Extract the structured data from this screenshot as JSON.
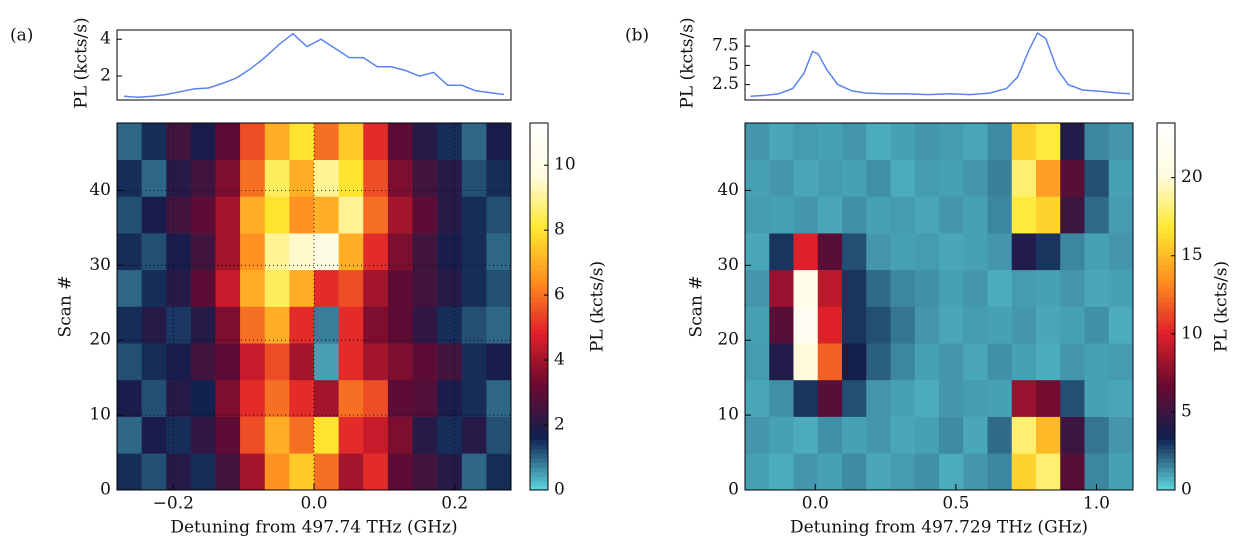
{
  "chart_data": [
    {
      "type": "line",
      "panel_label": "(a)",
      "ylabel": "PL (kcts/s)",
      "color": "#5b84f0",
      "x": [
        -0.27,
        -0.25,
        -0.23,
        -0.21,
        -0.19,
        -0.17,
        -0.15,
        -0.13,
        -0.11,
        -0.09,
        -0.07,
        -0.05,
        -0.03,
        -0.01,
        0.01,
        0.03,
        0.05,
        0.07,
        0.09,
        0.11,
        0.13,
        0.15,
        0.17,
        0.19,
        0.21,
        0.23,
        0.25,
        0.27
      ],
      "values": [
        0.9,
        0.85,
        0.9,
        1.0,
        1.15,
        1.3,
        1.35,
        1.6,
        1.9,
        2.4,
        3.0,
        3.7,
        4.3,
        3.6,
        4.0,
        3.5,
        3.0,
        3.0,
        2.5,
        2.5,
        2.3,
        2.0,
        2.2,
        1.5,
        1.5,
        1.2,
        1.1,
        1.0
      ],
      "xlim": [
        -0.28,
        0.28
      ],
      "ylim": [
        0.7,
        4.5
      ],
      "yticks": [
        2,
        4
      ]
    },
    {
      "type": "heatmap",
      "xlabel": "Detuning from 497.74 THz (GHz)",
      "ylabel": "Scan #",
      "xlim": [
        -0.28,
        0.28
      ],
      "ylim": [
        0,
        49
      ],
      "xticks": [
        {
          "value": -0.2,
          "label": "−0.2"
        },
        {
          "value": 0,
          "label": "0.0"
        },
        {
          "value": 0.2,
          "label": "0.2"
        }
      ],
      "yticks": [
        0,
        10,
        20,
        30,
        40
      ],
      "grid": true,
      "colormap": [
        "#5fd8e0",
        "#102050",
        "#6a0a30",
        "#e0202a",
        "#ff9020",
        "#ffe830",
        "#fffbe0",
        "#ffffff"
      ],
      "colorbar": {
        "label": "PL (kcts/s)",
        "lim": [
          0,
          11.3
        ],
        "ticks": [
          0,
          2,
          4,
          6,
          8,
          10
        ]
      },
      "values": [
        [
          1.5,
          1.2,
          2.0,
          1.5,
          2.5,
          4.0,
          6.5,
          7.5,
          6.0,
          4.0,
          5.0,
          3.0,
          2.5,
          2.0,
          1.0,
          1.5
        ],
        [
          1.0,
          1.8,
          1.5,
          2.2,
          3.0,
          5.5,
          7.0,
          6.0,
          8.0,
          5.0,
          4.5,
          3.5,
          2.0,
          1.5,
          2.0,
          1.2
        ],
        [
          1.8,
          1.2,
          2.0,
          1.6,
          3.5,
          5.0,
          6.0,
          5.0,
          4.0,
          6.0,
          5.5,
          3.0,
          2.8,
          1.8,
          1.5,
          1.0
        ],
        [
          1.2,
          1.5,
          1.8,
          2.5,
          3.0,
          4.5,
          5.5,
          4.0,
          0.5,
          5.0,
          4.0,
          3.5,
          3.0,
          2.5,
          1.5,
          1.8
        ],
        [
          1.5,
          2.0,
          1.4,
          2.0,
          3.5,
          6.0,
          7.0,
          5.0,
          0.8,
          5.0,
          3.5,
          3.0,
          2.2,
          1.5,
          1.2,
          1.0
        ],
        [
          1.0,
          1.5,
          2.0,
          3.0,
          4.5,
          7.0,
          8.5,
          7.0,
          5.0,
          5.5,
          4.0,
          3.0,
          2.5,
          2.0,
          1.5,
          1.2
        ],
        [
          1.5,
          1.2,
          1.8,
          2.5,
          4.0,
          6.5,
          9.0,
          9.5,
          10.0,
          7.0,
          5.0,
          3.5,
          2.5,
          1.8,
          1.5,
          1.0
        ],
        [
          1.2,
          1.8,
          2.5,
          3.0,
          4.0,
          7.0,
          8.0,
          6.5,
          7.0,
          9.0,
          6.0,
          4.0,
          3.0,
          2.0,
          1.5,
          1.2
        ],
        [
          1.5,
          1.0,
          2.0,
          2.5,
          3.5,
          6.0,
          8.5,
          7.0,
          9.0,
          8.0,
          5.5,
          3.5,
          2.5,
          2.0,
          1.2,
          1.5
        ],
        [
          1.0,
          1.5,
          2.5,
          1.8,
          3.0,
          5.5,
          7.0,
          8.0,
          6.0,
          7.5,
          5.0,
          3.0,
          2.0,
          1.5,
          1.0,
          1.8
        ]
      ]
    },
    {
      "type": "line",
      "panel_label": "(b)",
      "ylabel": "PL (kcts/s)",
      "color": "#5b84f0",
      "x": [
        -0.23,
        -0.18,
        -0.13,
        -0.08,
        -0.04,
        -0.01,
        0.01,
        0.04,
        0.08,
        0.13,
        0.18,
        0.25,
        0.32,
        0.4,
        0.48,
        0.55,
        0.62,
        0.68,
        0.72,
        0.76,
        0.79,
        0.82,
        0.86,
        0.9,
        0.95,
        1.02,
        1.08,
        1.12
      ],
      "values": [
        1.0,
        1.1,
        1.3,
        2.0,
        4.0,
        6.8,
        6.5,
        4.5,
        2.5,
        1.7,
        1.4,
        1.3,
        1.3,
        1.2,
        1.3,
        1.2,
        1.4,
        2.0,
        3.5,
        7.0,
        9.2,
        8.5,
        4.5,
        2.5,
        1.8,
        1.6,
        1.4,
        1.3
      ],
      "xlim": [
        -0.25,
        1.13
      ],
      "ylim": [
        0.5,
        9.6
      ],
      "yticks": [
        2.5,
        5.0,
        7.5
      ]
    },
    {
      "type": "heatmap",
      "xlabel": "Detuning from 497.729 THz (GHz)",
      "ylabel": "Scan #",
      "xlim": [
        -0.25,
        1.13
      ],
      "ylim": [
        0,
        49
      ],
      "xticks": [
        {
          "value": 0,
          "label": "0.0"
        },
        {
          "value": 0.5,
          "label": "0.5"
        },
        {
          "value": 1,
          "label": "1.0"
        }
      ],
      "yticks": [
        0,
        10,
        20,
        30,
        40
      ],
      "grid": false,
      "colormap": [
        "#5fd8e0",
        "#102050",
        "#6a0a30",
        "#e0202a",
        "#ff9020",
        "#ffe830",
        "#fffbe0",
        "#ffffff"
      ],
      "colorbar": {
        "label": "PL (kcts/s)",
        "lim": [
          0,
          23.5
        ],
        "ticks": [
          0,
          5,
          10,
          15,
          20
        ]
      },
      "values": [
        [
          1.0,
          0.8,
          1.2,
          1.0,
          1.4,
          0.9,
          1.1,
          1.3,
          0.8,
          1.2,
          1.5,
          16,
          18,
          6,
          1.5,
          1.0
        ],
        [
          1.2,
          1.0,
          0.8,
          1.3,
          1.0,
          1.2,
          0.9,
          1.0,
          1.4,
          0.9,
          2.0,
          18,
          15,
          5,
          1.8,
          1.2
        ],
        [
          0.9,
          1.3,
          3,
          6,
          2.5,
          1.2,
          1.0,
          0.8,
          1.2,
          1.1,
          1.0,
          8,
          7,
          2.5,
          1.0,
          0.9
        ],
        [
          1.1,
          4,
          20,
          12,
          3.5,
          2.2,
          1.5,
          1.0,
          1.2,
          0.9,
          1.3,
          1.0,
          0.8,
          1.2,
          1.0,
          1.1
        ],
        [
          1.0,
          6,
          22,
          10,
          3.0,
          2.5,
          1.8,
          1.2,
          0.9,
          1.1,
          1.0,
          1.2,
          0.9,
          1.0,
          1.3,
          0.8
        ],
        [
          1.2,
          8,
          21,
          9,
          3.0,
          2.0,
          1.5,
          1.3,
          1.0,
          1.2,
          0.8,
          1.1,
          1.0,
          1.2,
          0.9,
          1.0
        ],
        [
          0.9,
          3,
          10,
          6,
          2.5,
          1.2,
          1.0,
          1.1,
          0.9,
          1.0,
          1.2,
          4,
          3,
          1.5,
          1.0,
          1.2
        ],
        [
          1.1,
          1.0,
          1.2,
          0.9,
          1.3,
          1.0,
          1.1,
          0.9,
          1.2,
          1.0,
          1.5,
          17,
          16,
          5,
          2,
          1.1
        ],
        [
          1.0,
          1.2,
          0.9,
          1.1,
          1.0,
          1.3,
          0.8,
          1.1,
          1.0,
          1.2,
          1.6,
          18,
          14,
          6,
          2.5,
          1.0
        ],
        [
          1.2,
          0.9,
          1.1,
          1.0,
          1.2,
          0.8,
          1.0,
          1.2,
          1.1,
          0.9,
          1.4,
          16,
          17,
          4,
          1.5,
          1.2
        ]
      ]
    }
  ]
}
